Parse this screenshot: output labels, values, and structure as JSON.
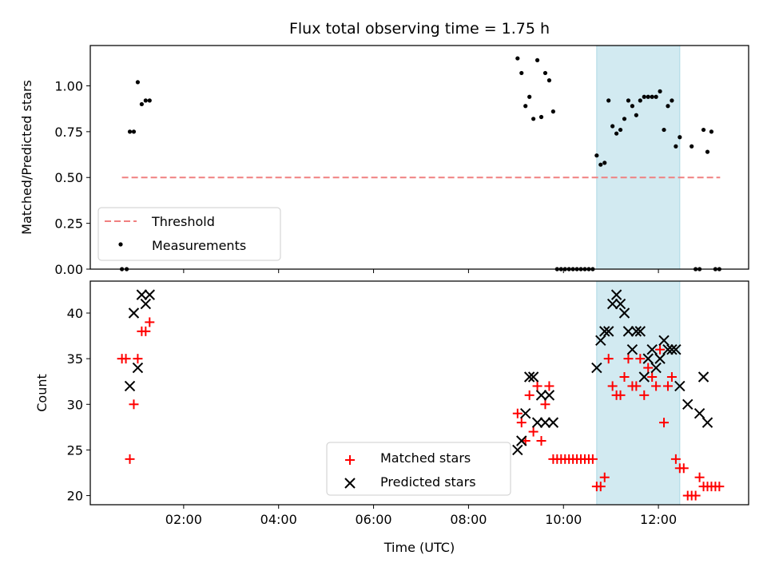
{
  "title": "Flux total observing time = 1.75 h",
  "highlight_color": "#add8e6",
  "chart_data": [
    {
      "type": "scatter",
      "panel": "top",
      "ylabel": "Matched/Predicted stars",
      "xlim": [
        "00:02",
        "13:54"
      ],
      "ylim": [
        0,
        1.22
      ],
      "yticks": [
        0.0,
        0.25,
        0.5,
        0.75,
        1.0
      ],
      "ytick_labels": [
        "0.00",
        "0.25",
        "0.50",
        "0.75",
        "1.00"
      ],
      "shaded_region": [
        "10:42",
        "12:27"
      ],
      "threshold": {
        "name": "Threshold",
        "y": 0.5,
        "x_range": [
          "00:42",
          "13:18"
        ],
        "color": "#f08080",
        "style": "dashed"
      },
      "series": [
        {
          "name": "Measurements",
          "color": "#000000",
          "marker": "dot",
          "points": [
            [
              "00:42",
              0.0
            ],
            [
              "00:48",
              0.0
            ],
            [
              "00:52",
              0.75
            ],
            [
              "00:57",
              0.75
            ],
            [
              "01:02",
              1.02
            ],
            [
              "01:07",
              0.9
            ],
            [
              "01:12",
              0.92
            ],
            [
              "01:17",
              0.92
            ],
            [
              "09:02",
              1.15
            ],
            [
              "09:07",
              1.07
            ],
            [
              "09:12",
              0.89
            ],
            [
              "09:17",
              0.94
            ],
            [
              "09:22",
              0.82
            ],
            [
              "09:27",
              1.14
            ],
            [
              "09:32",
              0.83
            ],
            [
              "09:37",
              1.07
            ],
            [
              "09:42",
              1.03
            ],
            [
              "09:47",
              0.86
            ],
            [
              "09:52",
              0.0
            ],
            [
              "09:57",
              0.0
            ],
            [
              "10:02",
              0.0
            ],
            [
              "10:07",
              0.0
            ],
            [
              "10:12",
              0.0
            ],
            [
              "10:17",
              0.0
            ],
            [
              "10:22",
              0.0
            ],
            [
              "10:27",
              0.0
            ],
            [
              "10:32",
              0.0
            ],
            [
              "10:37",
              0.0
            ],
            [
              "10:42",
              0.62
            ],
            [
              "10:47",
              0.57
            ],
            [
              "10:52",
              0.58
            ],
            [
              "10:57",
              0.92
            ],
            [
              "11:02",
              0.78
            ],
            [
              "11:07",
              0.74
            ],
            [
              "11:12",
              0.76
            ],
            [
              "11:17",
              0.82
            ],
            [
              "11:22",
              0.92
            ],
            [
              "11:27",
              0.89
            ],
            [
              "11:32",
              0.84
            ],
            [
              "11:37",
              0.92
            ],
            [
              "11:42",
              0.94
            ],
            [
              "11:47",
              0.94
            ],
            [
              "11:52",
              0.94
            ],
            [
              "11:57",
              0.94
            ],
            [
              "12:02",
              0.97
            ],
            [
              "12:07",
              0.76
            ],
            [
              "12:12",
              0.89
            ],
            [
              "12:17",
              0.92
            ],
            [
              "12:22",
              0.67
            ],
            [
              "12:27",
              0.72
            ],
            [
              "12:42",
              0.67
            ],
            [
              "12:57",
              0.76
            ],
            [
              "13:02",
              0.64
            ],
            [
              "13:07",
              0.75
            ],
            [
              "12:47",
              0.0
            ],
            [
              "12:52",
              0.0
            ],
            [
              "13:12",
              0.0
            ],
            [
              "13:17",
              0.0
            ]
          ]
        }
      ],
      "legend": {
        "position": "lower left",
        "entries": [
          "Threshold",
          "Measurements"
        ]
      }
    },
    {
      "type": "scatter",
      "panel": "bottom",
      "ylabel": "Count",
      "xlabel": "Time (UTC)",
      "xlim": [
        "00:02",
        "13:54"
      ],
      "ylim": [
        19,
        43.5
      ],
      "yticks": [
        20,
        25,
        30,
        35,
        40
      ],
      "ytick_labels": [
        "20",
        "25",
        "30",
        "35",
        "40"
      ],
      "xticks": [
        "02:00",
        "04:00",
        "06:00",
        "08:00",
        "10:00",
        "12:00"
      ],
      "shaded_region": [
        "10:42",
        "12:27"
      ],
      "series": [
        {
          "name": "Matched stars",
          "color": "#ff0000",
          "marker": "plus",
          "points": [
            [
              "00:42",
              35
            ],
            [
              "00:47",
              35
            ],
            [
              "00:52",
              24
            ],
            [
              "00:57",
              30
            ],
            [
              "01:02",
              35
            ],
            [
              "01:07",
              38
            ],
            [
              "01:12",
              38
            ],
            [
              "01:17",
              39
            ],
            [
              "09:02",
              29
            ],
            [
              "09:07",
              28
            ],
            [
              "09:12",
              26
            ],
            [
              "09:17",
              31
            ],
            [
              "09:22",
              27
            ],
            [
              "09:27",
              32
            ],
            [
              "09:32",
              26
            ],
            [
              "09:37",
              30
            ],
            [
              "09:42",
              32
            ],
            [
              "09:47",
              24
            ],
            [
              "09:52",
              24
            ],
            [
              "09:57",
              24
            ],
            [
              "10:02",
              24
            ],
            [
              "10:07",
              24
            ],
            [
              "10:12",
              24
            ],
            [
              "10:17",
              24
            ],
            [
              "10:22",
              24
            ],
            [
              "10:27",
              24
            ],
            [
              "10:32",
              24
            ],
            [
              "10:37",
              24
            ],
            [
              "10:42",
              21
            ],
            [
              "10:47",
              21
            ],
            [
              "10:52",
              22
            ],
            [
              "10:57",
              35
            ],
            [
              "11:02",
              32
            ],
            [
              "11:07",
              31
            ],
            [
              "11:12",
              31
            ],
            [
              "11:17",
              33
            ],
            [
              "11:22",
              35
            ],
            [
              "11:27",
              32
            ],
            [
              "11:32",
              32
            ],
            [
              "11:37",
              35
            ],
            [
              "11:42",
              31
            ],
            [
              "11:47",
              34
            ],
            [
              "11:52",
              33
            ],
            [
              "11:57",
              32
            ],
            [
              "12:02",
              36
            ],
            [
              "12:07",
              28
            ],
            [
              "12:12",
              32
            ],
            [
              "12:17",
              33
            ],
            [
              "12:22",
              24
            ],
            [
              "12:27",
              23
            ],
            [
              "12:32",
              23
            ],
            [
              "12:37",
              20
            ],
            [
              "12:42",
              20
            ],
            [
              "12:47",
              20
            ],
            [
              "12:52",
              22
            ],
            [
              "12:57",
              21
            ],
            [
              "13:02",
              21
            ],
            [
              "13:07",
              21
            ],
            [
              "13:12",
              21
            ],
            [
              "13:17",
              21
            ]
          ]
        },
        {
          "name": "Predicted stars",
          "color": "#000000",
          "marker": "x",
          "points": [
            [
              "00:52",
              32
            ],
            [
              "00:57",
              40
            ],
            [
              "01:02",
              34
            ],
            [
              "01:07",
              42
            ],
            [
              "01:12",
              41
            ],
            [
              "01:17",
              42
            ],
            [
              "09:02",
              25
            ],
            [
              "09:07",
              26
            ],
            [
              "09:12",
              29
            ],
            [
              "09:17",
              33
            ],
            [
              "09:22",
              33
            ],
            [
              "09:27",
              28
            ],
            [
              "09:32",
              31
            ],
            [
              "09:37",
              28
            ],
            [
              "09:42",
              31
            ],
            [
              "09:47",
              28
            ],
            [
              "10:42",
              34
            ],
            [
              "10:47",
              37
            ],
            [
              "10:52",
              38
            ],
            [
              "10:57",
              38
            ],
            [
              "11:02",
              41
            ],
            [
              "11:07",
              42
            ],
            [
              "11:12",
              41
            ],
            [
              "11:17",
              40
            ],
            [
              "11:22",
              38
            ],
            [
              "11:27",
              36
            ],
            [
              "11:32",
              38
            ],
            [
              "11:37",
              38
            ],
            [
              "11:42",
              33
            ],
            [
              "11:47",
              35
            ],
            [
              "11:52",
              36
            ],
            [
              "11:57",
              34
            ],
            [
              "12:02",
              35
            ],
            [
              "12:07",
              37
            ],
            [
              "12:12",
              36
            ],
            [
              "12:17",
              36
            ],
            [
              "12:22",
              36
            ],
            [
              "12:27",
              32
            ],
            [
              "12:37",
              30
            ],
            [
              "12:52",
              29
            ],
            [
              "12:57",
              33
            ],
            [
              "13:02",
              28
            ]
          ]
        }
      ],
      "legend": {
        "position": "lower center",
        "entries": [
          "Matched stars",
          "Predicted stars"
        ]
      }
    }
  ]
}
